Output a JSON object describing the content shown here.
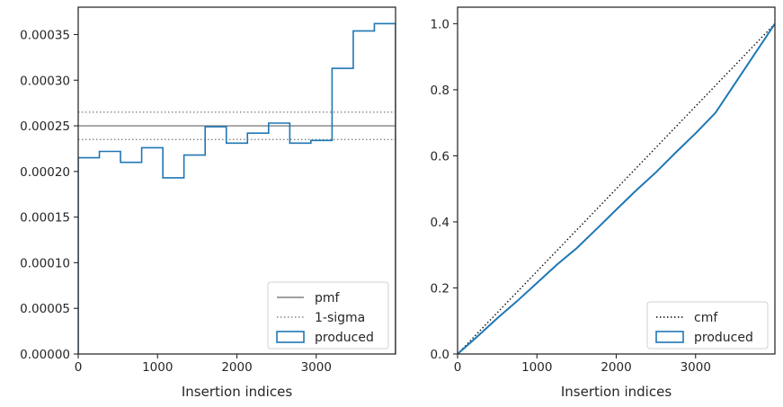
{
  "colors": {
    "produced": "#1f77b4",
    "reference": "#808080",
    "cmf": "#000000",
    "axis": "#262626"
  },
  "chart_data": [
    {
      "type": "step",
      "xlabel": "Insertion indices",
      "ylabel": "",
      "xlim": [
        0,
        4000
      ],
      "ylim": [
        0,
        0.00038
      ],
      "x_ticks": [
        0,
        1000,
        2000,
        3000
      ],
      "x_tick_labels": [
        "0",
        "1000",
        "2000",
        "3000"
      ],
      "y_ticks": [
        0,
        5e-05,
        0.0001,
        0.00015,
        0.0002,
        0.00025,
        0.0003,
        0.00035
      ],
      "y_tick_labels": [
        "0.00000",
        "0.00005",
        "0.00010",
        "0.00015",
        "0.00020",
        "0.00025",
        "0.00030",
        "0.00035"
      ],
      "bin_edges": [
        0,
        267,
        533,
        800,
        1067,
        1333,
        1600,
        1867,
        2133,
        2400,
        2667,
        2933,
        3200,
        3467,
        3733,
        4000
      ],
      "series": [
        {
          "name": "produced",
          "style": "step",
          "values": [
            0.000215,
            0.000222,
            0.00021,
            0.000226,
            0.000193,
            0.000218,
            0.000249,
            0.000231,
            0.000242,
            0.000253,
            0.000231,
            0.000234,
            0.000313,
            0.000354,
            0.000362
          ]
        }
      ],
      "hlines": [
        {
          "name": "pmf",
          "y": 0.00025,
          "style": "solid"
        },
        {
          "name": "1-sigma",
          "y": 0.000265,
          "style": "dotted"
        },
        {
          "name": "1-sigma",
          "y": 0.000235,
          "style": "dotted"
        }
      ],
      "legend": {
        "placement": "lower-right",
        "entries": [
          "pmf",
          "1-sigma",
          "produced"
        ]
      }
    },
    {
      "type": "line",
      "xlabel": "Insertion indices",
      "ylabel": "",
      "xlim": [
        0,
        4000
      ],
      "ylim": [
        0,
        1.05
      ],
      "x_ticks": [
        0,
        1000,
        2000,
        3000
      ],
      "x_tick_labels": [
        "0",
        "1000",
        "2000",
        "3000"
      ],
      "y_ticks": [
        0,
        0.2,
        0.4,
        0.6,
        0.8,
        1.0
      ],
      "y_tick_labels": [
        "0.0",
        "0.2",
        "0.4",
        "0.6",
        "0.8",
        "1.0"
      ],
      "series": [
        {
          "name": "cmf",
          "style": "dotted",
          "x": [
            0,
            4000
          ],
          "y": [
            0,
            1.0
          ]
        },
        {
          "name": "produced",
          "style": "solid",
          "x": [
            0,
            250,
            500,
            750,
            1000,
            1250,
            1500,
            1750,
            2000,
            2250,
            2500,
            2750,
            3000,
            3250,
            3500,
            3750,
            4000
          ],
          "y": [
            0,
            0.053,
            0.108,
            0.16,
            0.215,
            0.27,
            0.32,
            0.378,
            0.437,
            0.495,
            0.55,
            0.61,
            0.668,
            0.73,
            0.82,
            0.91,
            1.0
          ]
        }
      ],
      "legend": {
        "placement": "lower-right",
        "entries": [
          "cmf",
          "produced"
        ]
      }
    }
  ]
}
